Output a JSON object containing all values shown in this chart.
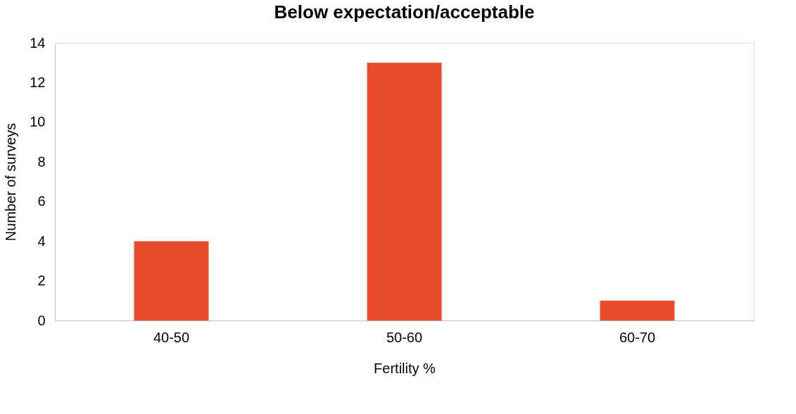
{
  "chart_data": {
    "type": "bar",
    "title": "Below expectation/acceptable",
    "xlabel": "Fertility %",
    "ylabel": "Number of surveys",
    "categories": [
      "40-50",
      "50-60",
      "60-70"
    ],
    "values": [
      4,
      13,
      1
    ],
    "color": "#e84a2a",
    "ylim": [
      0,
      14
    ],
    "yticks": [
      0,
      2,
      4,
      6,
      8,
      10,
      12,
      14
    ],
    "grid": false
  }
}
